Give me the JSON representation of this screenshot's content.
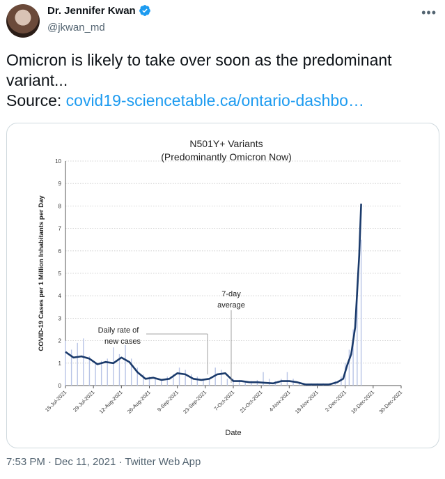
{
  "user": {
    "name": "Dr. Jennifer Kwan",
    "handle": "@jkwan_md",
    "verified_icon": "verified-badge-icon",
    "more_icon": "more-horizontal-icon",
    "more_label": "•••"
  },
  "tweet": {
    "line1": "Omicron is likely to take over soon as the predominant",
    "line2": "variant...",
    "source_label": "Source: ",
    "source_link": "covid19-sciencetable.ca/ontario-dashbo…"
  },
  "meta": {
    "time": "7:53 PM",
    "sep1": " · ",
    "date": "Dec 11, 2021",
    "sep2": " · ",
    "client": "Twitter Web App"
  },
  "colors": {
    "accent": "#1d9bf0",
    "line": "#1a3a6b",
    "bars": "#b8c4e6"
  },
  "chart_data": {
    "type": "line",
    "title": "N501Y+ Variants",
    "subtitle": "(Predominantly Omicron Now)",
    "xlabel": "Date",
    "ylabel": "COVID-19 Cases per 1 Million Inhabitants per Day",
    "ylim": [
      0,
      10
    ],
    "yticks": [
      "0",
      "1",
      "2",
      "3",
      "4",
      "5",
      "6",
      "7",
      "8",
      "9",
      "10"
    ],
    "xticks": [
      "15-Jul-2021",
      "29-Jul-2021",
      "12-Aug-2021",
      "26-Aug-2021",
      "9-Sep-2021",
      "23-Sep-2021",
      "7-Oct-2021",
      "21-Oct-2021",
      "4-Nov-2021",
      "18-Nov-2021",
      "2-Dec-2021",
      "16-Dec-2021",
      "30-Dec-2021"
    ],
    "annotations": {
      "daily": [
        "Daily rate of",
        "new cases"
      ],
      "average": [
        "7-day",
        "average"
      ]
    },
    "grid": true,
    "series": [
      {
        "kind": "line",
        "x": [
          "2021-07-15",
          "2021-07-19",
          "2021-07-23",
          "2021-07-27",
          "2021-07-31",
          "2021-08-04",
          "2021-08-08",
          "2021-08-12",
          "2021-08-16",
          "2021-08-20",
          "2021-08-24",
          "2021-08-28",
          "2021-09-01",
          "2021-09-05",
          "2021-09-09",
          "2021-09-13",
          "2021-09-17",
          "2021-09-21",
          "2021-09-25",
          "2021-09-29",
          "2021-10-03",
          "2021-10-07",
          "2021-10-11",
          "2021-10-15",
          "2021-10-19",
          "2021-10-23",
          "2021-10-27",
          "2021-10-31",
          "2021-11-04",
          "2021-11-08",
          "2021-11-12",
          "2021-11-16",
          "2021-11-20",
          "2021-11-24",
          "2021-11-28",
          "2021-12-01",
          "2021-12-03",
          "2021-12-05",
          "2021-12-07",
          "2021-12-09",
          "2021-12-10"
        ],
        "y": [
          1.5,
          1.25,
          1.3,
          1.2,
          0.95,
          1.05,
          1.0,
          1.25,
          1.05,
          0.6,
          0.3,
          0.35,
          0.25,
          0.3,
          0.55,
          0.5,
          0.3,
          0.25,
          0.3,
          0.5,
          0.55,
          0.2,
          0.2,
          0.15,
          0.15,
          0.12,
          0.1,
          0.2,
          0.2,
          0.15,
          0.05,
          0.05,
          0.05,
          0.05,
          0.15,
          0.3,
          0.9,
          1.4,
          2.6,
          5.8,
          8.1
        ]
      },
      {
        "kind": "bar",
        "x": [
          "2021-07-15",
          "2021-07-18",
          "2021-07-21",
          "2021-07-24",
          "2021-07-27",
          "2021-07-30",
          "2021-08-02",
          "2021-08-05",
          "2021-08-08",
          "2021-08-11",
          "2021-08-14",
          "2021-08-17",
          "2021-08-20",
          "2021-08-23",
          "2021-08-26",
          "2021-08-29",
          "2021-09-01",
          "2021-09-04",
          "2021-09-07",
          "2021-09-10",
          "2021-09-13",
          "2021-09-16",
          "2021-09-19",
          "2021-09-22",
          "2021-09-25",
          "2021-09-28",
          "2021-10-01",
          "2021-10-04",
          "2021-10-07",
          "2021-10-10",
          "2021-10-13",
          "2021-10-16",
          "2021-10-19",
          "2021-10-22",
          "2021-10-25",
          "2021-10-28",
          "2021-10-31",
          "2021-11-03",
          "2021-11-06",
          "2021-11-09",
          "2021-11-12",
          "2021-11-15",
          "2021-11-18",
          "2021-11-21",
          "2021-11-24",
          "2021-11-27",
          "2021-11-30",
          "2021-12-02",
          "2021-12-04",
          "2021-12-06",
          "2021-12-08",
          "2021-12-10"
        ],
        "y": [
          2.0,
          1.6,
          1.9,
          2.1,
          1.3,
          1.0,
          1.1,
          1.2,
          1.7,
          1.4,
          1.8,
          1.2,
          0.8,
          0.5,
          0.4,
          0.3,
          0.2,
          0.4,
          0.5,
          0.8,
          0.7,
          0.5,
          0.4,
          0.3,
          0.3,
          0.8,
          0.7,
          0.3,
          0.3,
          0.25,
          0.2,
          0.2,
          0.25,
          0.6,
          0.3,
          0.2,
          0.3,
          0.6,
          0.3,
          0.15,
          0.1,
          0.1,
          0.1,
          0.1,
          0.1,
          0.2,
          0.4,
          1.0,
          1.6,
          2.5,
          4.0,
          6.5
        ]
      }
    ]
  }
}
